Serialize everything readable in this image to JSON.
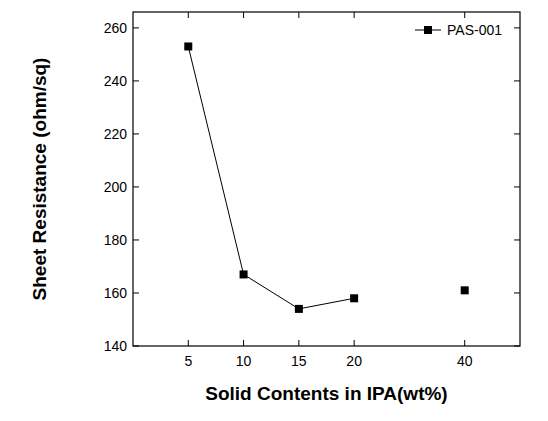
{
  "chart_data": {
    "type": "line",
    "x_label": "Solid Contents in IPA(wt%)",
    "y_label": "Sheet Resistance (ohm/sq)",
    "categories": [
      "5",
      "10",
      "15",
      "20",
      null,
      "40"
    ],
    "series": [
      {
        "name": "PAS-001",
        "color": "#000000",
        "marker": "square",
        "line_style": "solid",
        "values": [
          253,
          167,
          154,
          158,
          null,
          161
        ]
      }
    ],
    "ylim": [
      140,
      266
    ],
    "yticks": [
      140,
      160,
      180,
      200,
      220,
      240,
      260
    ],
    "legend": "upper right",
    "grid": false
  }
}
